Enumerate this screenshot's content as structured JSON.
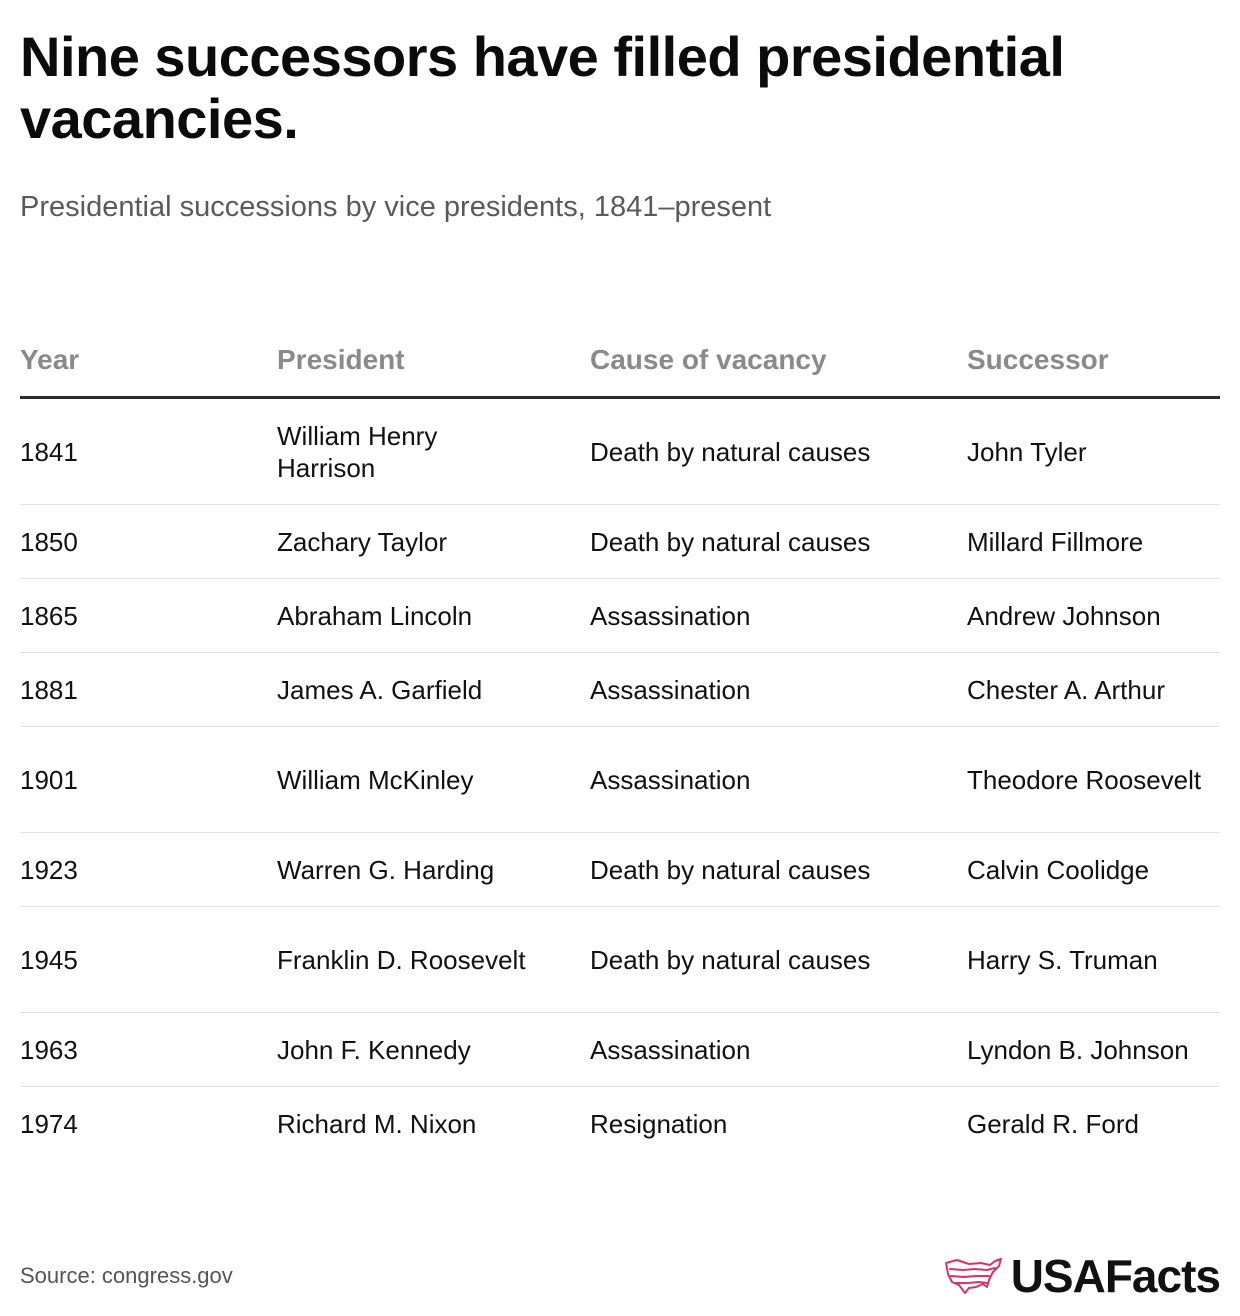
{
  "title": "Nine successors have filled presidential vacancies.",
  "subtitle": "Presidential successions by vice presidents, 1841–present",
  "source": "Source: congress.gov",
  "brand": {
    "name": "USAFacts",
    "logo_icon": "us-map-outline-icon",
    "logo_color": "#d6336c"
  },
  "chart_data": {
    "type": "table",
    "columns": [
      "Year",
      "President",
      "Cause of vacancy",
      "Successor"
    ],
    "rows": [
      [
        "1841",
        "William Henry Harrison",
        "Death by natural causes",
        "John Tyler"
      ],
      [
        "1850",
        "Zachary Taylor",
        "Death by natural causes",
        "Millard Fillmore"
      ],
      [
        "1865",
        "Abraham Lincoln",
        "Assassination",
        "Andrew Johnson"
      ],
      [
        "1881",
        "James A. Garfield",
        "Assassination",
        "Chester A. Arthur"
      ],
      [
        "1901",
        "William McKinley",
        "Assassination",
        "Theodore Roosevelt"
      ],
      [
        "1923",
        "Warren G. Harding",
        "Death by natural causes",
        "Calvin Coolidge"
      ],
      [
        "1945",
        "Franklin D. Roosevelt",
        "Death by natural causes",
        "Harry S. Truman"
      ],
      [
        "1963",
        "John F. Kennedy",
        "Assassination",
        "Lyndon B. Johnson"
      ],
      [
        "1974",
        "Richard M. Nixon",
        "Resignation",
        "Gerald R. Ford"
      ]
    ]
  }
}
